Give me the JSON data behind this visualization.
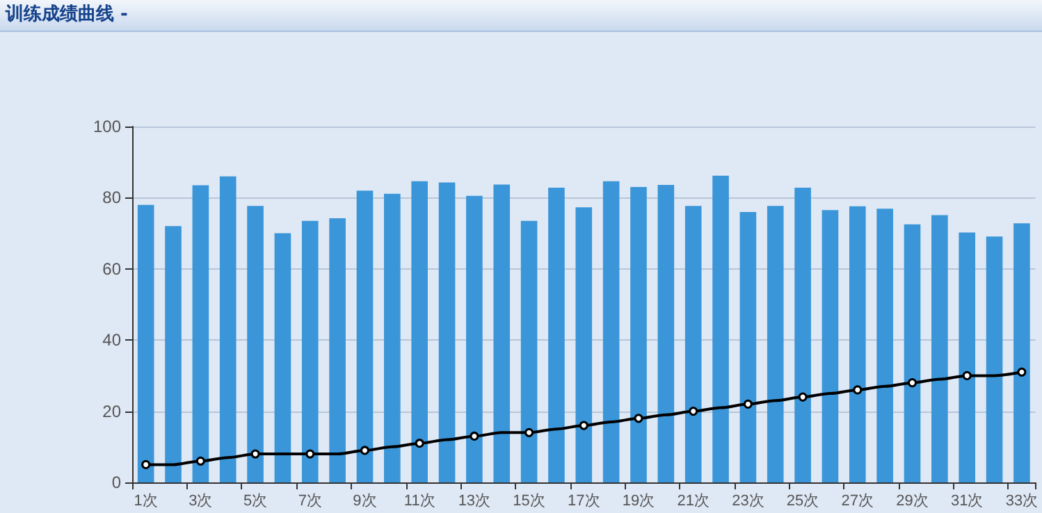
{
  "chart_data": {
    "type": "bar",
    "title": "训练成绩曲线 -",
    "categories": [
      "1次",
      null,
      "3次",
      null,
      "5次",
      null,
      "7次",
      null,
      "9次",
      null,
      "11次",
      null,
      "13次",
      null,
      "15次",
      null,
      "17次",
      null,
      "19次",
      null,
      "21次",
      null,
      "23次",
      null,
      "25次",
      null,
      "27次",
      null,
      "29次",
      null,
      "31次",
      null,
      "33次"
    ],
    "series": [
      {
        "color": "#3a96d8",
        "values": [
          78,
          72,
          83.5,
          86,
          77.7,
          70,
          73.5,
          74.2,
          82,
          81.1,
          84.6,
          84.3,
          80.5,
          83.7,
          73.5,
          82.8,
          77.3,
          84.6,
          83,
          83.6,
          77.7,
          86.2,
          76,
          77.7,
          82.8,
          76.5,
          77.6,
          76.9,
          72.5,
          75.1,
          70.2,
          69.1,
          72.8
        ]
      },
      {
        "type": "line",
        "color": "#000000",
        "values": [
          5,
          5,
          6,
          7,
          8,
          8,
          8,
          8,
          9,
          10,
          11,
          12,
          13,
          14,
          14,
          15,
          16,
          17,
          18,
          19,
          20,
          21,
          22,
          23,
          24,
          25,
          26,
          27,
          28,
          29,
          30,
          30,
          31
        ]
      }
    ],
    "ylim": [
      0,
      100
    ],
    "yticks": [
      0,
      20,
      40,
      60,
      80,
      100
    ],
    "grid": "y",
    "marker": "circle",
    "line_style": "solid"
  }
}
